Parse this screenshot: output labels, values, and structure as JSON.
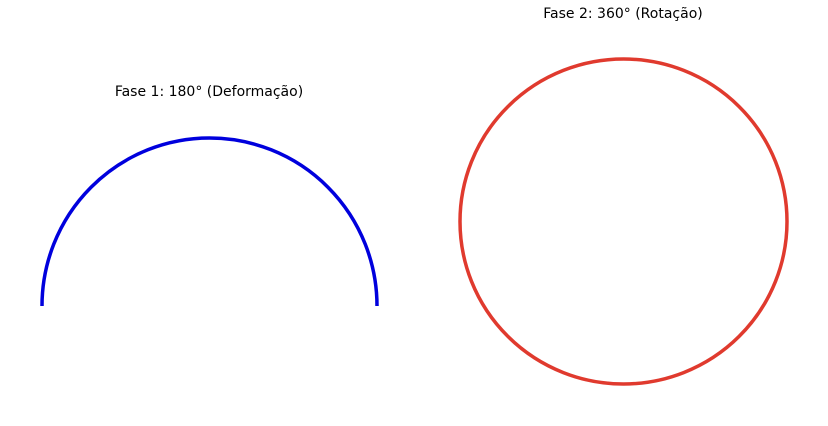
{
  "panels": [
    {
      "title": "Fase 1: 180° (Deformação)",
      "shape": "semicircle-arc",
      "stroke_color": "#0000dd"
    },
    {
      "title": "Fase 2: 360° (Rotação)",
      "shape": "full-circle",
      "stroke_color": "#e03a2e"
    }
  ]
}
